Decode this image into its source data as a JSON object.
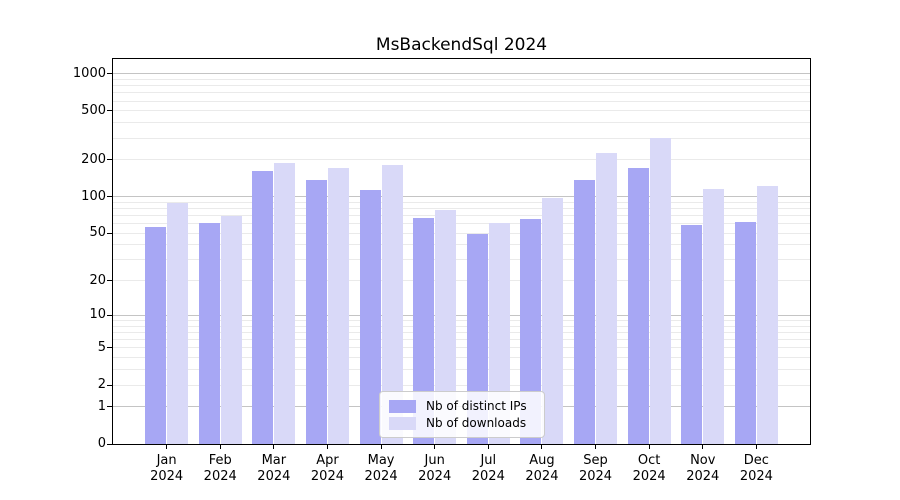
{
  "title": "MsBackendSql 2024",
  "colors": {
    "background": "#ffffff",
    "bar_distinct_ips": "#a7a7f4",
    "bar_downloads": "#d9d9f8",
    "grid_major": "#c4c4c4",
    "grid_minor": "#eaeaea",
    "axis": "#000000",
    "legend_border": "#cccccc"
  },
  "chart_data": {
    "type": "bar",
    "title": "MsBackendSql 2024",
    "categories": [
      "Jan\n2024",
      "Feb\n2024",
      "Mar\n2024",
      "Apr\n2024",
      "May\n2024",
      "Jun\n2024",
      "Jul\n2024",
      "Aug\n2024",
      "Sep\n2024",
      "Oct\n2024",
      "Nov\n2024",
      "Dec\n2024"
    ],
    "series": [
      {
        "name": "Nb of distinct IPs",
        "color": "#a7a7f4",
        "values": [
          56,
          61,
          163,
          138,
          114,
          67,
          49,
          66,
          138,
          170,
          58,
          62
        ]
      },
      {
        "name": "Nb of downloads",
        "color": "#d9d9f8",
        "values": [
          88,
          69,
          190,
          172,
          183,
          78,
          61,
          97,
          227,
          300,
          115,
          123
        ]
      }
    ],
    "yscale": "log1p",
    "yticks": [
      0,
      1,
      2,
      5,
      10,
      20,
      50,
      100,
      200,
      500,
      1000
    ],
    "ylim": [
      0,
      1317
    ],
    "xlabel": "",
    "ylabel": "",
    "grid": true,
    "legend_position": "lower center"
  }
}
